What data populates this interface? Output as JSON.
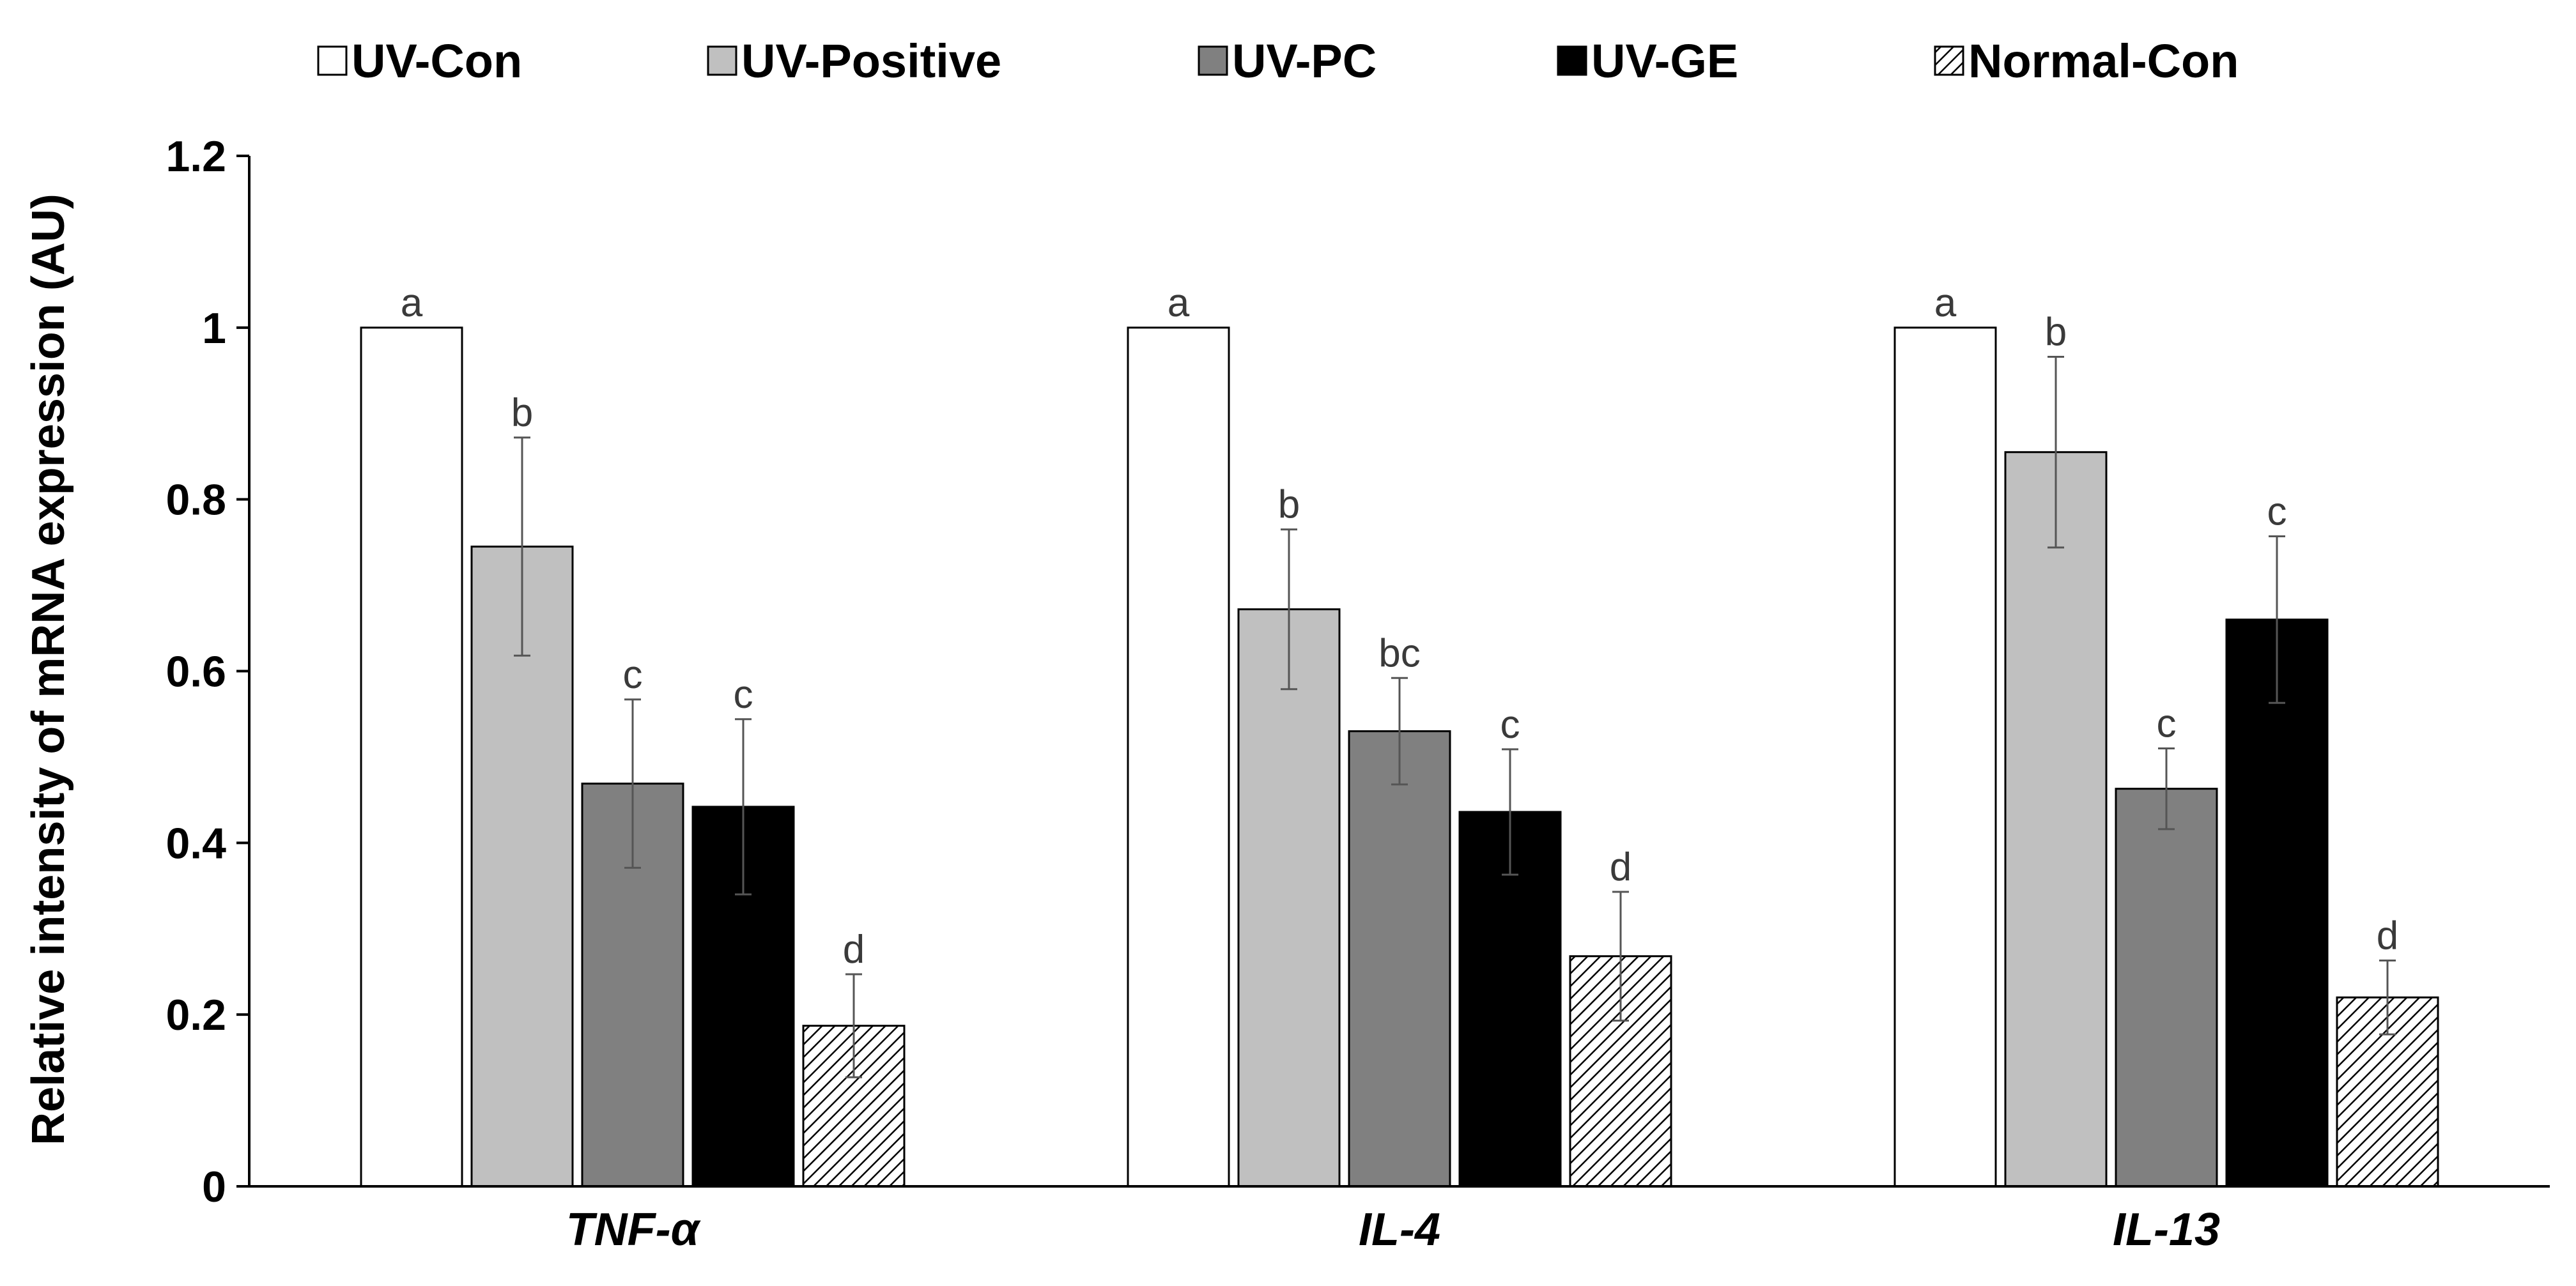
{
  "chart_data": {
    "type": "bar",
    "title": "",
    "xlabel": "",
    "ylabel": "Relative intensity of mRNA expression (AU)",
    "ylim": [
      0,
      1.2
    ],
    "yticks": [
      0,
      0.2,
      0.4,
      0.6,
      0.8,
      1,
      1.2
    ],
    "ytick_labels": [
      "0",
      "0.2",
      "0.4",
      "0.6",
      "0.8",
      "1",
      "1.2"
    ],
    "grid": false,
    "legend_position": "top",
    "categories": [
      "TNF-α",
      "IL-4",
      "IL-13"
    ],
    "series": [
      {
        "name": "UV-Con",
        "color": "#ffffff",
        "pattern": "none",
        "values": [
          1.0,
          1.0,
          1.0
        ],
        "errors": [
          0.0,
          0.0,
          0.0
        ],
        "significance": [
          "a",
          "a",
          "a"
        ]
      },
      {
        "name": "UV-Positive",
        "color": "#c0c0c0",
        "pattern": "none",
        "values": [
          0.745,
          0.672,
          0.855
        ],
        "errors": [
          0.127,
          0.093,
          0.111
        ],
        "significance": [
          "b",
          "b",
          "b"
        ]
      },
      {
        "name": "UV-PC",
        "color": "#808080",
        "pattern": "none",
        "values": [
          0.469,
          0.53,
          0.463
        ],
        "errors": [
          0.098,
          0.062,
          0.047
        ],
        "significance": [
          "c",
          "bc",
          "c"
        ]
      },
      {
        "name": "UV-GE",
        "color": "#000000",
        "pattern": "none",
        "values": [
          0.442,
          0.436,
          0.66
        ],
        "errors": [
          0.102,
          0.073,
          0.097
        ],
        "significance": [
          "c",
          "c",
          "c"
        ]
      },
      {
        "name": "Normal-Con",
        "color": "#ffffff",
        "pattern": "diagonal-hatch",
        "values": [
          0.187,
          0.268,
          0.22
        ],
        "errors": [
          0.06,
          0.075,
          0.043
        ],
        "significance": [
          "d",
          "d",
          "d"
        ]
      }
    ]
  }
}
